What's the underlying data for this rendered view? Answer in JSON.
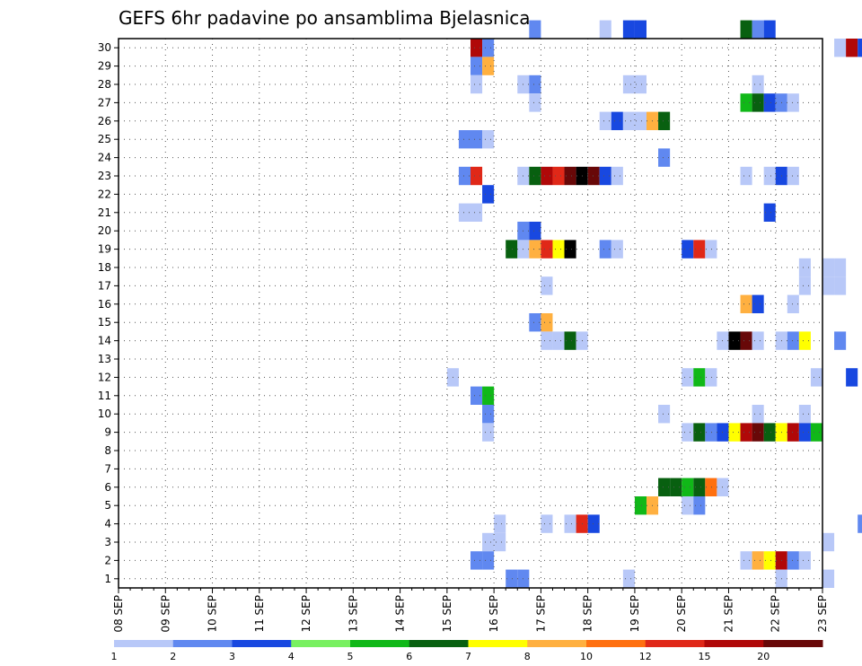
{
  "chart_data": {
    "type": "heatmap",
    "title": "GEFS 6hr padavine po ansamblima Bjelasnica",
    "xlabel": "",
    "ylabel": "",
    "x_ticks": [
      "08 SEP",
      "09 SEP",
      "10 SEP",
      "11 SEP",
      "12 SEP",
      "13 SEP",
      "14 SEP",
      "15 SEP",
      "16 SEP",
      "17 SEP",
      "18 SEP",
      "19 SEP",
      "20 SEP",
      "21 SEP",
      "22 SEP",
      "23 SEP"
    ],
    "y_ticks": [
      "1",
      "2",
      "3",
      "4",
      "5",
      "6",
      "7",
      "8",
      "9",
      "10",
      "11",
      "12",
      "13",
      "14",
      "15",
      "16",
      "17",
      "18",
      "19",
      "20",
      "21",
      "22",
      "23",
      "24",
      "25",
      "26",
      "27",
      "28",
      "29",
      "30"
    ],
    "x_range": [
      "08 SEP 00z",
      "23 SEP 00z"
    ],
    "time_step_hours": 6,
    "y_range": [
      0,
      30
    ],
    "grid": "dotted",
    "legend": {
      "placement": "bottom",
      "labels": [
        "1",
        "2",
        "3",
        "4",
        "5",
        "6",
        "7",
        "8",
        "10",
        "12",
        "15",
        "20"
      ],
      "colors": [
        "#b8c8f8",
        "#6088f0",
        "#1848e0",
        "#78f060",
        "#10b818",
        "#086010",
        "#ffff00",
        "#ffb040",
        "#ff7010",
        "#e02818",
        "#b00808",
        "#680808"
      ]
    },
    "cells": [
      [
        30,
        35,
        2
      ],
      [
        30,
        41,
        1
      ],
      [
        30,
        43,
        3
      ],
      [
        30,
        44,
        3
      ],
      [
        30,
        53,
        6
      ],
      [
        30,
        54,
        2
      ],
      [
        30,
        55,
        3
      ],
      [
        29,
        30,
        11
      ],
      [
        29,
        31,
        2
      ],
      [
        29,
        61,
        1
      ],
      [
        29,
        62,
        11
      ],
      [
        29,
        63,
        3
      ],
      [
        29,
        64,
        2
      ],
      [
        28,
        30,
        2
      ],
      [
        28,
        31,
        8
      ],
      [
        27,
        30,
        1
      ],
      [
        27,
        34,
        1
      ],
      [
        27,
        35,
        2
      ],
      [
        27,
        43,
        1
      ],
      [
        27,
        44,
        1
      ],
      [
        27,
        54,
        1
      ],
      [
        26,
        35,
        1
      ],
      [
        26,
        53,
        5
      ],
      [
        26,
        54,
        6
      ],
      [
        26,
        55,
        3
      ],
      [
        26,
        56,
        2
      ],
      [
        26,
        57,
        1
      ],
      [
        25,
        41,
        1
      ],
      [
        25,
        42,
        3
      ],
      [
        25,
        43,
        1
      ],
      [
        25,
        44,
        1
      ],
      [
        25,
        45,
        8
      ],
      [
        25,
        46,
        6
      ],
      [
        25,
        64,
        1
      ],
      [
        24,
        29,
        2
      ],
      [
        24,
        30,
        2
      ],
      [
        24,
        31,
        1
      ],
      [
        23,
        46,
        2
      ],
      [
        22,
        29,
        2
      ],
      [
        22,
        30,
        10
      ],
      [
        22,
        34,
        1
      ],
      [
        22,
        35,
        6
      ],
      [
        22,
        36,
        11
      ],
      [
        22,
        37,
        10
      ],
      [
        22,
        38,
        12
      ],
      [
        22,
        39,
        13
      ],
      [
        22,
        40,
        12
      ],
      [
        22,
        41,
        3
      ],
      [
        22,
        42,
        1
      ],
      [
        22,
        53,
        1
      ],
      [
        22,
        55,
        1
      ],
      [
        22,
        56,
        3
      ],
      [
        22,
        57,
        1
      ],
      [
        21,
        31,
        3
      ],
      [
        20,
        29,
        1
      ],
      [
        20,
        30,
        1
      ],
      [
        20,
        55,
        3
      ],
      [
        19,
        34,
        2
      ],
      [
        19,
        35,
        3
      ],
      [
        18,
        33,
        6
      ],
      [
        18,
        34,
        1
      ],
      [
        18,
        35,
        8
      ],
      [
        18,
        36,
        10
      ],
      [
        18,
        37,
        7
      ],
      [
        18,
        38,
        13
      ],
      [
        18,
        41,
        2
      ],
      [
        18,
        42,
        1
      ],
      [
        18,
        48,
        3
      ],
      [
        18,
        49,
        10
      ],
      [
        18,
        50,
        1
      ],
      [
        16,
        36,
        1
      ],
      [
        16,
        58,
        1
      ],
      [
        16,
        60,
        1
      ],
      [
        16,
        61,
        1
      ],
      [
        17,
        58,
        1
      ],
      [
        17,
        60,
        1
      ],
      [
        17,
        61,
        1
      ],
      [
        15,
        53,
        8
      ],
      [
        15,
        54,
        3
      ],
      [
        15,
        57,
        1
      ],
      [
        14,
        35,
        2
      ],
      [
        14,
        36,
        8
      ],
      [
        13,
        36,
        1
      ],
      [
        13,
        37,
        1
      ],
      [
        13,
        38,
        6
      ],
      [
        13,
        39,
        1
      ],
      [
        13,
        51,
        1
      ],
      [
        13,
        52,
        13
      ],
      [
        13,
        53,
        12
      ],
      [
        13,
        54,
        1
      ],
      [
        13,
        56,
        1
      ],
      [
        13,
        57,
        2
      ],
      [
        13,
        58,
        7
      ],
      [
        13,
        61,
        2
      ],
      [
        11,
        28,
        1
      ],
      [
        11,
        48,
        1
      ],
      [
        11,
        49,
        5
      ],
      [
        11,
        50,
        1
      ],
      [
        11,
        59,
        1
      ],
      [
        11,
        62,
        3
      ],
      [
        11,
        64,
        1
      ],
      [
        10,
        30,
        2
      ],
      [
        10,
        31,
        5
      ],
      [
        9,
        31,
        2
      ],
      [
        9,
        46,
        1
      ],
      [
        9,
        54,
        1
      ],
      [
        9,
        58,
        1
      ],
      [
        8,
        31,
        1
      ],
      [
        8,
        48,
        1
      ],
      [
        8,
        49,
        6
      ],
      [
        8,
        50,
        2
      ],
      [
        8,
        51,
        3
      ],
      [
        8,
        52,
        7
      ],
      [
        8,
        53,
        11
      ],
      [
        8,
        54,
        12
      ],
      [
        8,
        55,
        6
      ],
      [
        8,
        56,
        7
      ],
      [
        8,
        57,
        11
      ],
      [
        8,
        58,
        3
      ],
      [
        8,
        59,
        5
      ],
      [
        5,
        46,
        6
      ],
      [
        5,
        47,
        6
      ],
      [
        5,
        48,
        5
      ],
      [
        5,
        49,
        6
      ],
      [
        5,
        50,
        9
      ],
      [
        5,
        51,
        1
      ],
      [
        4,
        44,
        5
      ],
      [
        4,
        45,
        8
      ],
      [
        4,
        48,
        1
      ],
      [
        4,
        49,
        2
      ],
      [
        3,
        32,
        1
      ],
      [
        3,
        36,
        1
      ],
      [
        3,
        38,
        1
      ],
      [
        3,
        39,
        10
      ],
      [
        3,
        40,
        3
      ],
      [
        3,
        63,
        2
      ],
      [
        2,
        31,
        1
      ],
      [
        2,
        32,
        1
      ],
      [
        2,
        60,
        1
      ],
      [
        1,
        30,
        2
      ],
      [
        1,
        31,
        2
      ],
      [
        1,
        53,
        1
      ],
      [
        1,
        54,
        8
      ],
      [
        1,
        55,
        7
      ],
      [
        1,
        56,
        11
      ],
      [
        1,
        57,
        2
      ],
      [
        1,
        58,
        1
      ],
      [
        0,
        33,
        2
      ],
      [
        0,
        34,
        2
      ],
      [
        0,
        43,
        1
      ],
      [
        0,
        56,
        1
      ],
      [
        0,
        60,
        1
      ]
    ]
  }
}
